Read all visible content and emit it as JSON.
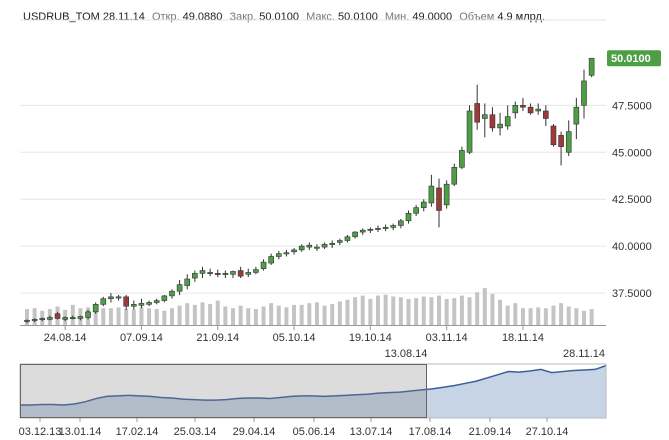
{
  "header": {
    "symbol": "USDRUB_TOM",
    "date": "28.11.14",
    "open_label": "Откр.",
    "open_value": "49.0880",
    "close_label": "Закр.",
    "close_value": "50.0100",
    "high_label": "Макс.",
    "high_value": "50.0100",
    "low_label": "Мин.",
    "low_value": "49.0000",
    "volume_label": "Объем",
    "volume_value": "4.9 млрд."
  },
  "last_price_tag": "50.0100",
  "navigator": {
    "range_start_label": "13.08.14",
    "range_end_label": "28.11.14",
    "x_ticks": [
      "03.12.13",
      "13.01.14",
      "17.02.14",
      "25.03.14",
      "29.04.14",
      "05.06.14",
      "13.07.14",
      "17.08.14",
      "21.09.14",
      "27.10.14"
    ],
    "series": [
      0.24,
      0.24,
      0.25,
      0.25,
      0.24,
      0.26,
      0.3,
      0.36,
      0.4,
      0.41,
      0.42,
      0.41,
      0.4,
      0.38,
      0.37,
      0.35,
      0.34,
      0.33,
      0.33,
      0.34,
      0.36,
      0.37,
      0.37,
      0.36,
      0.38,
      0.4,
      0.41,
      0.41,
      0.4,
      0.41,
      0.42,
      0.43,
      0.44,
      0.46,
      0.47,
      0.48,
      0.5,
      0.52,
      0.54,
      0.57,
      0.6,
      0.64,
      0.68,
      0.74,
      0.8,
      0.86,
      0.85,
      0.87,
      0.9,
      0.84,
      0.86,
      0.88,
      0.89,
      0.9,
      0.97
    ]
  },
  "colors": {
    "up": "#4d9e45",
    "down": "#9e3a3a",
    "volume": "#c4c4c4",
    "grid": "#e6e6e6",
    "navigator_line": "#3b5f9a",
    "navigator_fill": "#c6d4e6",
    "tag": "#4d9e45"
  },
  "chart_data": {
    "type": "candlestick",
    "title": "",
    "y_axis": {
      "ticks": [
        37.5,
        40,
        42.5,
        45,
        47.5
      ],
      "ylim": [
        35.8,
        51.3
      ],
      "grid": true,
      "position": "right"
    },
    "x_ticks": [
      {
        "label": "24.08.14",
        "index": 5
      },
      {
        "label": "07.09.14",
        "index": 15
      },
      {
        "label": "21.09.14",
        "index": 25
      },
      {
        "label": "05.10.14",
        "index": 35
      },
      {
        "label": "19.10.14",
        "index": 45
      },
      {
        "label": "03.11.14",
        "index": 55
      },
      {
        "label": "18.11.14",
        "index": 65
      }
    ],
    "candles": [
      [
        36.0,
        36.1,
        35.9,
        36.05
      ],
      [
        36.05,
        36.15,
        35.95,
        36.1
      ],
      [
        36.1,
        36.2,
        36.0,
        36.15
      ],
      [
        36.1,
        36.3,
        36.05,
        36.2
      ],
      [
        36.4,
        36.5,
        36.1,
        36.15
      ],
      [
        36.1,
        36.25,
        36.0,
        36.2
      ],
      [
        36.2,
        36.3,
        36.1,
        36.2
      ],
      [
        36.15,
        36.3,
        36.05,
        36.25
      ],
      [
        36.2,
        36.6,
        36.1,
        36.5
      ],
      [
        36.5,
        37.0,
        36.4,
        36.9
      ],
      [
        36.9,
        37.3,
        36.8,
        37.2
      ],
      [
        37.2,
        37.5,
        37.0,
        37.3
      ],
      [
        37.25,
        37.4,
        37.1,
        37.3
      ],
      [
        37.3,
        37.4,
        36.6,
        36.8
      ],
      [
        36.8,
        37.1,
        36.6,
        36.9
      ],
      [
        36.85,
        37.2,
        36.7,
        36.95
      ],
      [
        36.9,
        37.1,
        36.8,
        37.0
      ],
      [
        37.0,
        37.2,
        36.9,
        37.1
      ],
      [
        37.1,
        37.4,
        37.0,
        37.35
      ],
      [
        37.35,
        37.7,
        37.2,
        37.6
      ],
      [
        37.6,
        38.2,
        37.4,
        37.95
      ],
      [
        37.9,
        38.5,
        37.7,
        38.25
      ],
      [
        38.3,
        38.7,
        38.1,
        38.55
      ],
      [
        38.55,
        38.9,
        38.3,
        38.7
      ],
      [
        38.6,
        38.8,
        38.4,
        38.6
      ],
      [
        38.55,
        38.75,
        38.35,
        38.5
      ],
      [
        38.5,
        38.7,
        38.3,
        38.55
      ],
      [
        38.5,
        38.7,
        38.3,
        38.65
      ],
      [
        38.7,
        38.9,
        38.3,
        38.4
      ],
      [
        38.5,
        38.8,
        38.35,
        38.6
      ],
      [
        38.6,
        38.9,
        38.5,
        38.75
      ],
      [
        38.8,
        39.3,
        38.7,
        39.15
      ],
      [
        39.1,
        39.6,
        39.0,
        39.45
      ],
      [
        39.45,
        39.75,
        39.3,
        39.6
      ],
      [
        39.6,
        39.8,
        39.45,
        39.65
      ],
      [
        39.7,
        39.9,
        39.55,
        39.8
      ],
      [
        39.8,
        40.1,
        39.7,
        40.0
      ],
      [
        39.95,
        40.2,
        39.8,
        40.05
      ],
      [
        39.9,
        40.1,
        39.75,
        39.95
      ],
      [
        39.95,
        40.2,
        39.85,
        40.1
      ],
      [
        40.1,
        40.3,
        39.9,
        40.15
      ],
      [
        40.2,
        40.4,
        40.05,
        40.3
      ],
      [
        40.3,
        40.6,
        40.2,
        40.5
      ],
      [
        40.5,
        40.8,
        40.4,
        40.75
      ],
      [
        40.75,
        40.95,
        40.6,
        40.85
      ],
      [
        40.85,
        41.0,
        40.7,
        40.9
      ],
      [
        40.9,
        41.1,
        40.75,
        40.95
      ],
      [
        40.95,
        41.15,
        40.8,
        41.0
      ],
      [
        41.0,
        41.2,
        40.85,
        41.1
      ],
      [
        41.1,
        41.45,
        40.95,
        41.35
      ],
      [
        41.35,
        41.9,
        41.2,
        41.75
      ],
      [
        41.75,
        42.2,
        41.6,
        42.05
      ],
      [
        42.05,
        42.5,
        41.85,
        42.35
      ],
      [
        42.3,
        43.8,
        42.1,
        43.2
      ],
      [
        43.1,
        43.6,
        41.0,
        41.9
      ],
      [
        42.2,
        43.5,
        42.0,
        43.3
      ],
      [
        43.3,
        44.4,
        43.2,
        44.2
      ],
      [
        44.2,
        45.3,
        44.1,
        45.1
      ],
      [
        45.0,
        47.5,
        44.9,
        47.2
      ],
      [
        47.6,
        48.6,
        46.2,
        46.6
      ],
      [
        46.8,
        47.6,
        45.8,
        47.0
      ],
      [
        47.0,
        47.4,
        46.1,
        46.3
      ],
      [
        46.3,
        47.1,
        45.9,
        46.5
      ],
      [
        46.4,
        47.5,
        46.2,
        46.9
      ],
      [
        47.1,
        47.7,
        46.8,
        47.5
      ],
      [
        47.5,
        47.9,
        47.2,
        47.4
      ],
      [
        47.4,
        47.6,
        47.0,
        47.1
      ],
      [
        47.2,
        47.6,
        47.0,
        47.3
      ],
      [
        47.2,
        47.5,
        46.4,
        46.8
      ],
      [
        46.4,
        46.5,
        45.3,
        45.4
      ],
      [
        45.9,
        46.1,
        44.3,
        45.3
      ],
      [
        45.0,
        46.7,
        44.8,
        46.1
      ],
      [
        46.5,
        47.9,
        45.7,
        47.4
      ],
      [
        47.5,
        49.4,
        46.8,
        48.8
      ],
      [
        49.1,
        50.01,
        49.0,
        50.01
      ]
    ],
    "volume_relative": [
      0.38,
      0.4,
      0.34,
      0.38,
      0.44,
      0.36,
      0.48,
      0.4,
      0.42,
      0.36,
      0.4,
      0.4,
      0.42,
      0.38,
      0.36,
      0.42,
      0.4,
      0.38,
      0.34,
      0.4,
      0.46,
      0.52,
      0.48,
      0.54,
      0.5,
      0.58,
      0.44,
      0.4,
      0.46,
      0.4,
      0.38,
      0.44,
      0.52,
      0.46,
      0.42,
      0.48,
      0.48,
      0.52,
      0.54,
      0.46,
      0.5,
      0.56,
      0.6,
      0.66,
      0.7,
      0.62,
      0.7,
      0.72,
      0.68,
      0.66,
      0.62,
      0.64,
      0.68,
      0.66,
      0.7,
      0.62,
      0.64,
      0.7,
      0.66,
      0.78,
      0.88,
      0.74,
      0.6,
      0.46,
      0.52,
      0.4,
      0.4,
      0.42,
      0.4,
      0.46,
      0.52,
      0.44,
      0.4,
      0.34,
      0.38
    ]
  }
}
